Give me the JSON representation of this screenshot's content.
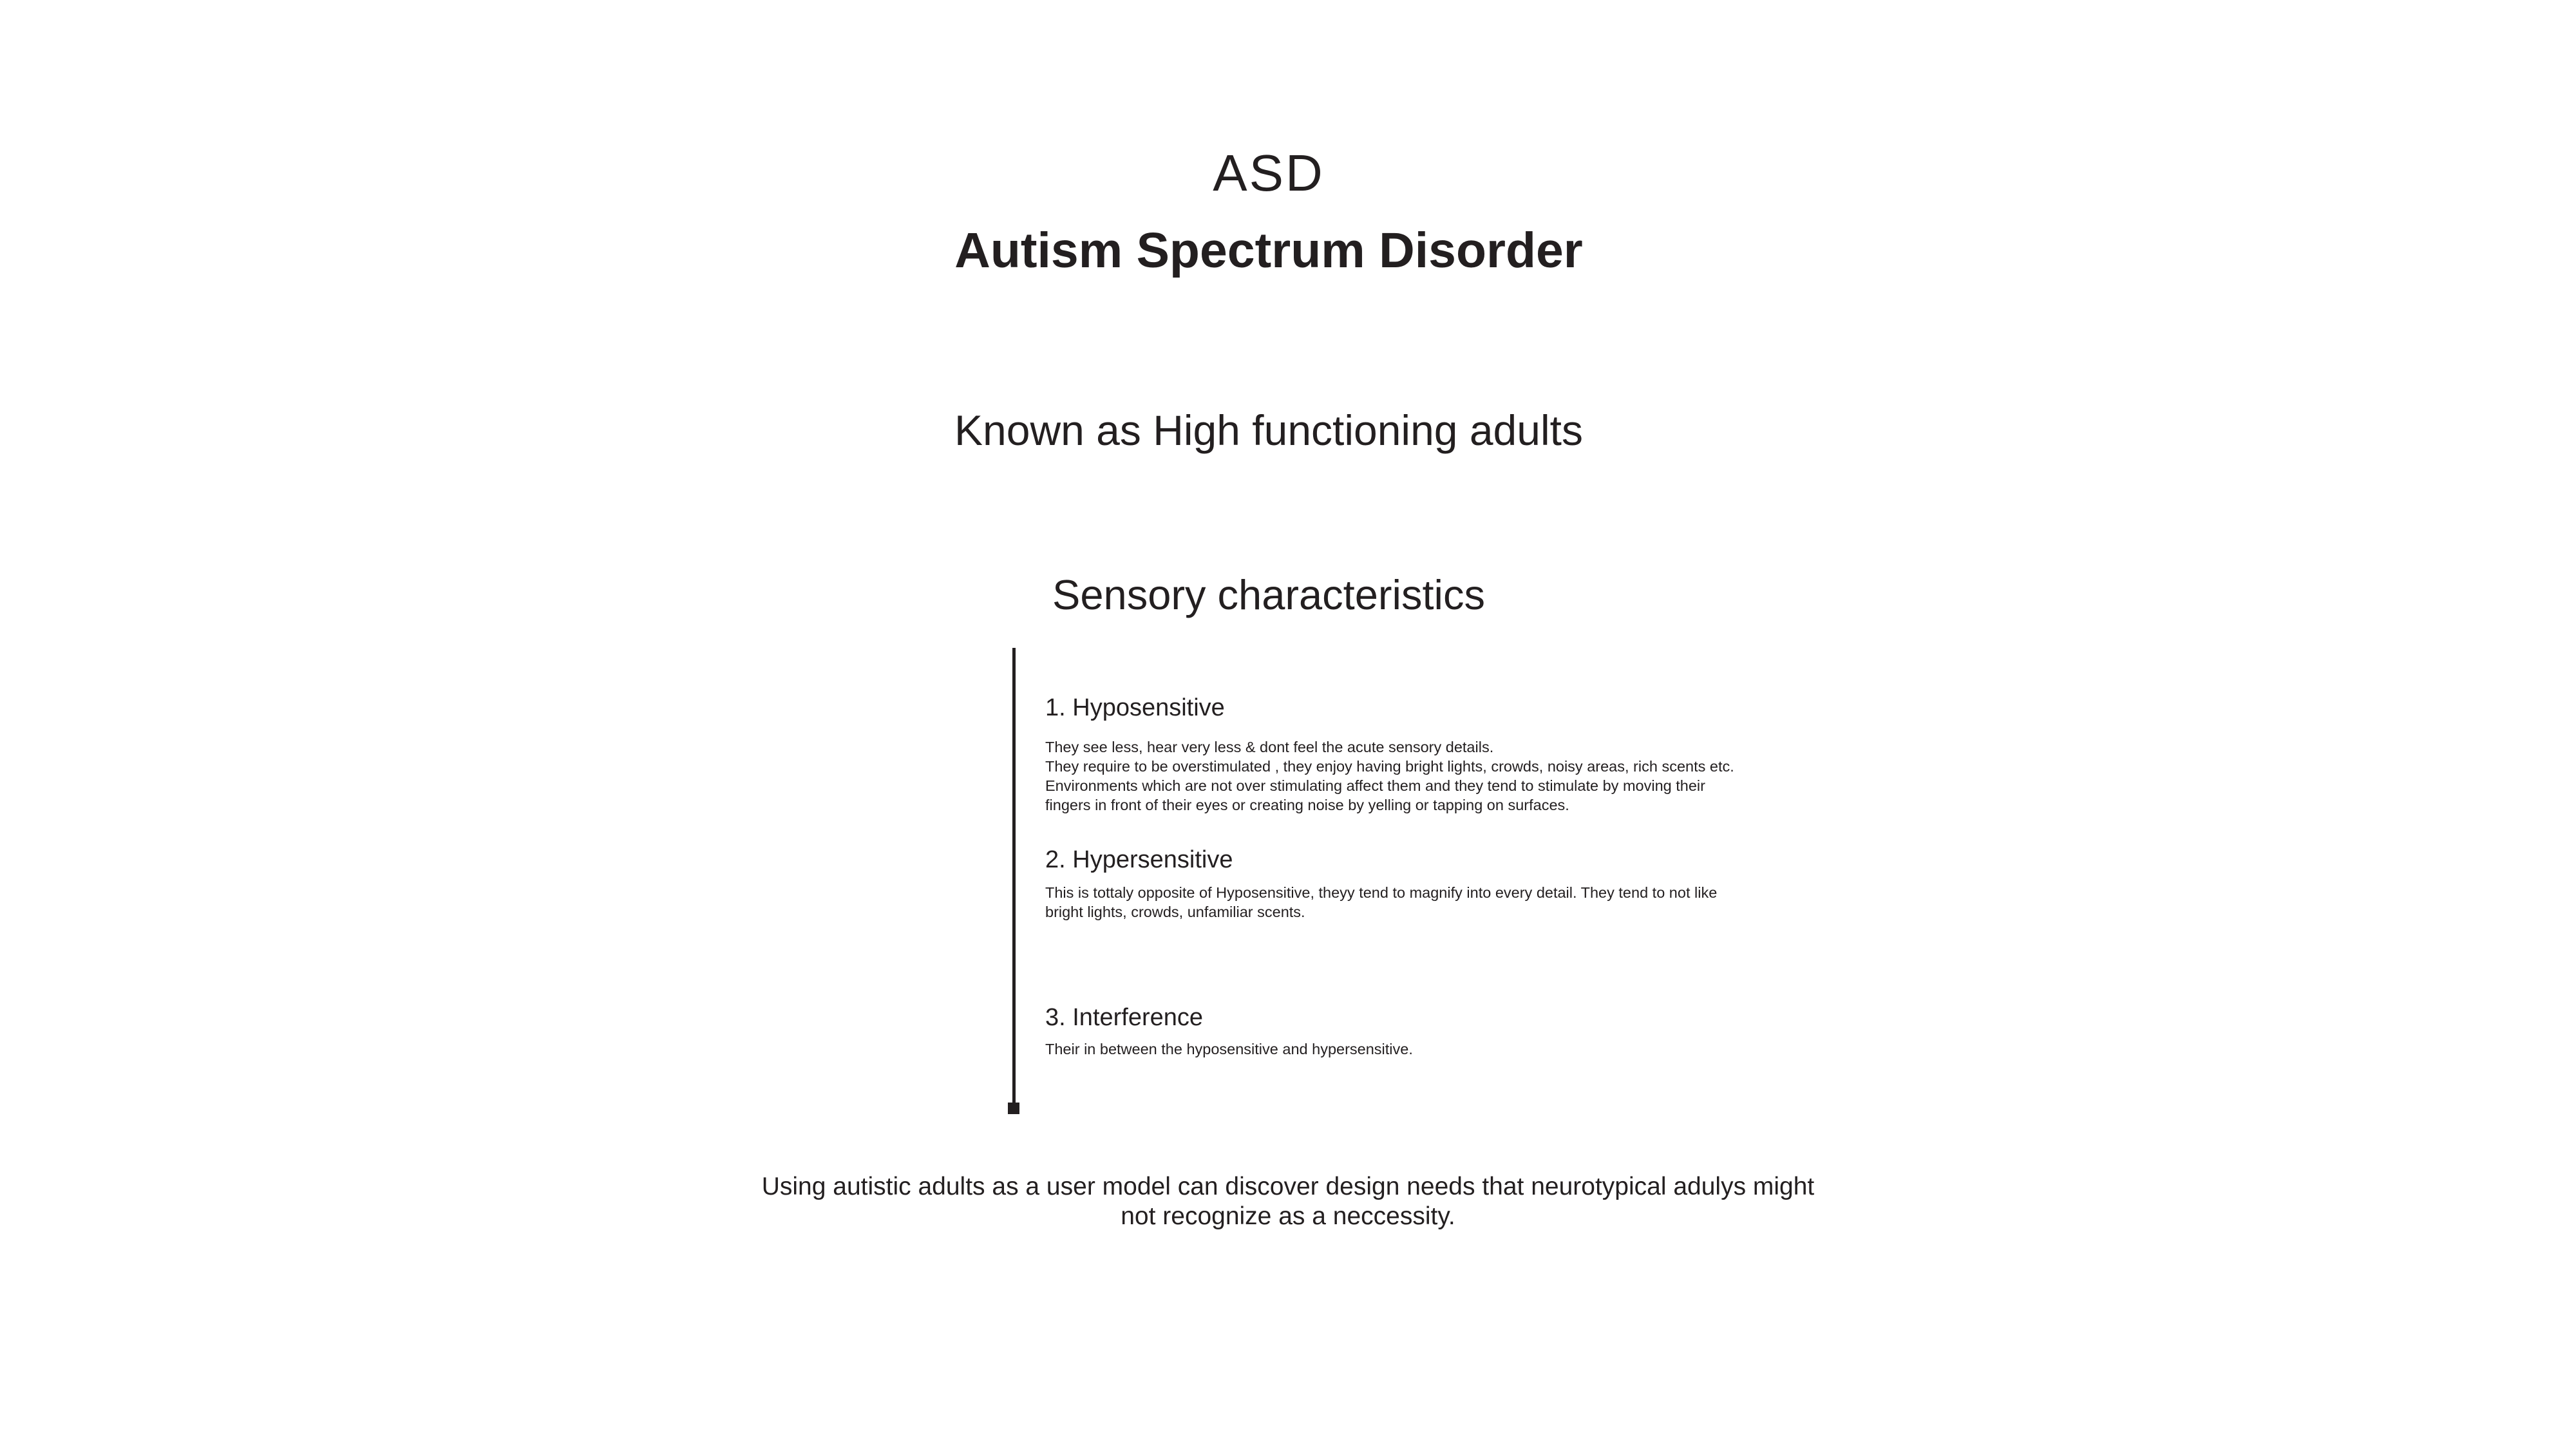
{
  "header": {
    "abbreviation": "ASD",
    "title": "Autism Spectrum Disorder"
  },
  "subtitle": "Known as High functioning adults",
  "sensory": {
    "heading": "Sensory characteristics",
    "items": [
      {
        "title": "1. Hyposensitive",
        "lines": [
          "They see less, hear very less & dont feel the acute sensory details.",
          "They require to be overstimulated , they enjoy having bright lights, crowds, noisy areas, rich scents etc.",
          "Environments which are not over stimulating affect them and they tend to stimulate by moving their",
          "fingers in front of their eyes or creating noise by yelling or tapping on surfaces."
        ]
      },
      {
        "title": "2. Hypersensitive",
        "lines": [
          "This is tottaly opposite of Hyposensitive, theyy tend to magnify into every detail. They tend to not like",
          "bright lights, crowds, unfamiliar scents."
        ]
      },
      {
        "title": "3. Interference",
        "lines": [
          "Their in between the hyposensitive and hypersensitive."
        ]
      }
    ]
  },
  "conclusion": {
    "lines": [
      "Using autistic adults as a user model can discover design needs that neurotypical adulys might",
      "not recognize as a neccessity."
    ]
  }
}
